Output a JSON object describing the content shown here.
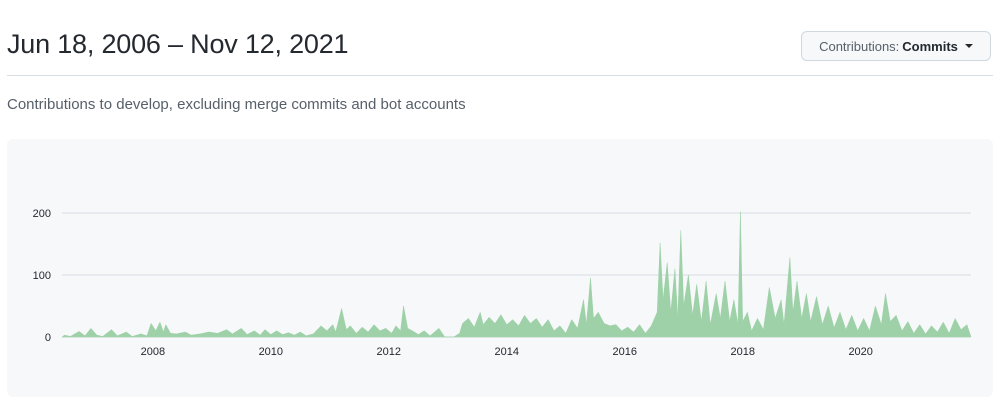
{
  "header": {
    "title": "Jun 18, 2006 – Nov 12, 2021",
    "contributions_select": {
      "label": "Contributions:",
      "value": "Commits"
    }
  },
  "subtitle": "Contributions to develop, excluding merge commits and bot accounts",
  "colors": {
    "area": "#9ed1a8",
    "grid": "#d8dee4",
    "background": "#f6f8fa"
  },
  "chart_data": {
    "type": "area",
    "xlabel": "",
    "ylabel": "",
    "ylim": [
      0,
      200
    ],
    "yticks": [
      "0",
      "100",
      "200"
    ],
    "xticks": [
      "2008",
      "2010",
      "2012",
      "2014",
      "2016",
      "2018",
      "2020"
    ],
    "grid": true,
    "series": [
      {
        "values": [
          [
            2006.46,
            0
          ],
          [
            2006.5,
            3
          ],
          [
            2006.6,
            1
          ],
          [
            2006.75,
            9
          ],
          [
            2006.85,
            2
          ],
          [
            2006.95,
            14
          ],
          [
            2007.05,
            3
          ],
          [
            2007.15,
            1
          ],
          [
            2007.3,
            12
          ],
          [
            2007.4,
            2
          ],
          [
            2007.55,
            8
          ],
          [
            2007.65,
            1
          ],
          [
            2007.8,
            5
          ],
          [
            2007.9,
            2
          ],
          [
            2007.97,
            22
          ],
          [
            2008.05,
            10
          ],
          [
            2008.12,
            24
          ],
          [
            2008.18,
            8
          ],
          [
            2008.22,
            20
          ],
          [
            2008.3,
            6
          ],
          [
            2008.4,
            5
          ],
          [
            2008.55,
            8
          ],
          [
            2008.65,
            3
          ],
          [
            2008.8,
            5
          ],
          [
            2008.95,
            8
          ],
          [
            2009.1,
            6
          ],
          [
            2009.25,
            12
          ],
          [
            2009.35,
            5
          ],
          [
            2009.5,
            14
          ],
          [
            2009.6,
            4
          ],
          [
            2009.72,
            10
          ],
          [
            2009.82,
            3
          ],
          [
            2009.9,
            12
          ],
          [
            2010.0,
            4
          ],
          [
            2010.1,
            10
          ],
          [
            2010.2,
            4
          ],
          [
            2010.3,
            7
          ],
          [
            2010.4,
            3
          ],
          [
            2010.5,
            8
          ],
          [
            2010.6,
            2
          ],
          [
            2010.72,
            5
          ],
          [
            2010.85,
            18
          ],
          [
            2010.95,
            10
          ],
          [
            2011.05,
            20
          ],
          [
            2011.1,
            8
          ],
          [
            2011.2,
            46
          ],
          [
            2011.28,
            12
          ],
          [
            2011.35,
            18
          ],
          [
            2011.45,
            6
          ],
          [
            2011.55,
            16
          ],
          [
            2011.65,
            8
          ],
          [
            2011.75,
            20
          ],
          [
            2011.85,
            10
          ],
          [
            2011.95,
            14
          ],
          [
            2012.05,
            6
          ],
          [
            2012.12,
            18
          ],
          [
            2012.2,
            10
          ],
          [
            2012.25,
            50
          ],
          [
            2012.32,
            14
          ],
          [
            2012.4,
            10
          ],
          [
            2012.5,
            4
          ],
          [
            2012.6,
            10
          ],
          [
            2012.7,
            2
          ],
          [
            2012.85,
            14
          ],
          [
            2012.95,
            0
          ],
          [
            2013.1,
            0
          ],
          [
            2013.2,
            6
          ],
          [
            2013.25,
            22
          ],
          [
            2013.35,
            30
          ],
          [
            2013.45,
            16
          ],
          [
            2013.55,
            40
          ],
          [
            2013.6,
            20
          ],
          [
            2013.7,
            32
          ],
          [
            2013.8,
            22
          ],
          [
            2013.9,
            36
          ],
          [
            2014.0,
            20
          ],
          [
            2014.1,
            28
          ],
          [
            2014.2,
            18
          ],
          [
            2014.3,
            35
          ],
          [
            2014.4,
            22
          ],
          [
            2014.5,
            30
          ],
          [
            2014.6,
            16
          ],
          [
            2014.7,
            28
          ],
          [
            2014.8,
            10
          ],
          [
            2014.9,
            18
          ],
          [
            2015.0,
            6
          ],
          [
            2015.1,
            28
          ],
          [
            2015.2,
            14
          ],
          [
            2015.3,
            60
          ],
          [
            2015.35,
            20
          ],
          [
            2015.42,
            95
          ],
          [
            2015.47,
            30
          ],
          [
            2015.55,
            40
          ],
          [
            2015.65,
            22
          ],
          [
            2015.75,
            18
          ],
          [
            2015.85,
            20
          ],
          [
            2015.95,
            10
          ],
          [
            2016.05,
            16
          ],
          [
            2016.15,
            8
          ],
          [
            2016.25,
            20
          ],
          [
            2016.35,
            6
          ],
          [
            2016.45,
            18
          ],
          [
            2016.55,
            40
          ],
          [
            2016.6,
            152
          ],
          [
            2016.65,
            60
          ],
          [
            2016.72,
            120
          ],
          [
            2016.78,
            40
          ],
          [
            2016.85,
            110
          ],
          [
            2016.9,
            30
          ],
          [
            2016.95,
            172
          ],
          [
            2017.0,
            50
          ],
          [
            2017.08,
            100
          ],
          [
            2017.15,
            35
          ],
          [
            2017.22,
            85
          ],
          [
            2017.3,
            25
          ],
          [
            2017.38,
            90
          ],
          [
            2017.45,
            20
          ],
          [
            2017.55,
            70
          ],
          [
            2017.62,
            30
          ],
          [
            2017.7,
            90
          ],
          [
            2017.78,
            25
          ],
          [
            2017.85,
            60
          ],
          [
            2017.92,
            20
          ],
          [
            2017.96,
            202
          ],
          [
            2018.0,
            25
          ],
          [
            2018.08,
            40
          ],
          [
            2018.15,
            10
          ],
          [
            2018.25,
            30
          ],
          [
            2018.35,
            12
          ],
          [
            2018.45,
            80
          ],
          [
            2018.55,
            30
          ],
          [
            2018.65,
            60
          ],
          [
            2018.7,
            20
          ],
          [
            2018.8,
            128
          ],
          [
            2018.85,
            40
          ],
          [
            2018.92,
            90
          ],
          [
            2019.0,
            30
          ],
          [
            2019.08,
            70
          ],
          [
            2019.15,
            25
          ],
          [
            2019.25,
            65
          ],
          [
            2019.35,
            20
          ],
          [
            2019.45,
            50
          ],
          [
            2019.55,
            15
          ],
          [
            2019.65,
            40
          ],
          [
            2019.75,
            12
          ],
          [
            2019.85,
            35
          ],
          [
            2019.95,
            10
          ],
          [
            2020.05,
            30
          ],
          [
            2020.15,
            10
          ],
          [
            2020.25,
            50
          ],
          [
            2020.35,
            20
          ],
          [
            2020.42,
            70
          ],
          [
            2020.5,
            25
          ],
          [
            2020.6,
            35
          ],
          [
            2020.7,
            10
          ],
          [
            2020.8,
            25
          ],
          [
            2020.9,
            6
          ],
          [
            2021.0,
            20
          ],
          [
            2021.1,
            5
          ],
          [
            2021.2,
            18
          ],
          [
            2021.3,
            8
          ],
          [
            2021.4,
            24
          ],
          [
            2021.5,
            6
          ],
          [
            2021.6,
            30
          ],
          [
            2021.7,
            12
          ],
          [
            2021.8,
            20
          ],
          [
            2021.87,
            0
          ]
        ]
      }
    ]
  }
}
